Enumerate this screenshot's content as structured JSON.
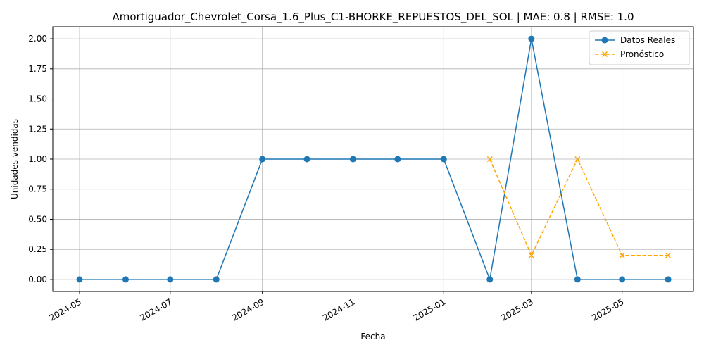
{
  "chart_data": {
    "type": "line",
    "title": "Amortiguador_Chevrolet_Corsa_1.6_Plus_C1-BHORKE_REPUESTOS_DEL_SOL | MAE: 0.8 | RMSE: 1.0",
    "xlabel": "Fecha",
    "ylabel": "Unidades vendidas",
    "x_ticks": [
      "2024-05",
      "2024-07",
      "2024-09",
      "2024-11",
      "2025-01",
      "2025-03",
      "2025-05"
    ],
    "y_ticks": [
      "0.00",
      "0.25",
      "0.50",
      "0.75",
      "1.00",
      "1.25",
      "1.50",
      "1.75",
      "2.00"
    ],
    "ylim": [
      -0.1,
      2.1
    ],
    "xlim": [
      "2024-04-13",
      "2025-06-18"
    ],
    "grid": true,
    "legend_position": "top-right",
    "series": [
      {
        "name": "Datos Reales",
        "color": "#1f77b4",
        "style": "solid",
        "marker": "circle",
        "x": [
          "2024-05-01",
          "2024-06-01",
          "2024-07-01",
          "2024-08-01",
          "2024-09-01",
          "2024-10-01",
          "2024-11-01",
          "2024-12-01",
          "2025-01-01",
          "2025-02-01",
          "2025-03-01",
          "2025-04-01",
          "2025-05-01",
          "2025-06-01"
        ],
        "values": [
          0,
          0,
          0,
          0,
          1,
          1,
          1,
          1,
          1,
          0,
          2,
          0,
          0,
          0
        ]
      },
      {
        "name": "Pronóstico",
        "color": "#ffa500",
        "style": "dashed",
        "marker": "x",
        "x": [
          "2025-02-01",
          "2025-03-01",
          "2025-04-01",
          "2025-05-01",
          "2025-06-01"
        ],
        "values": [
          1.0,
          0.2,
          1.0,
          0.2,
          0.2
        ]
      }
    ]
  }
}
